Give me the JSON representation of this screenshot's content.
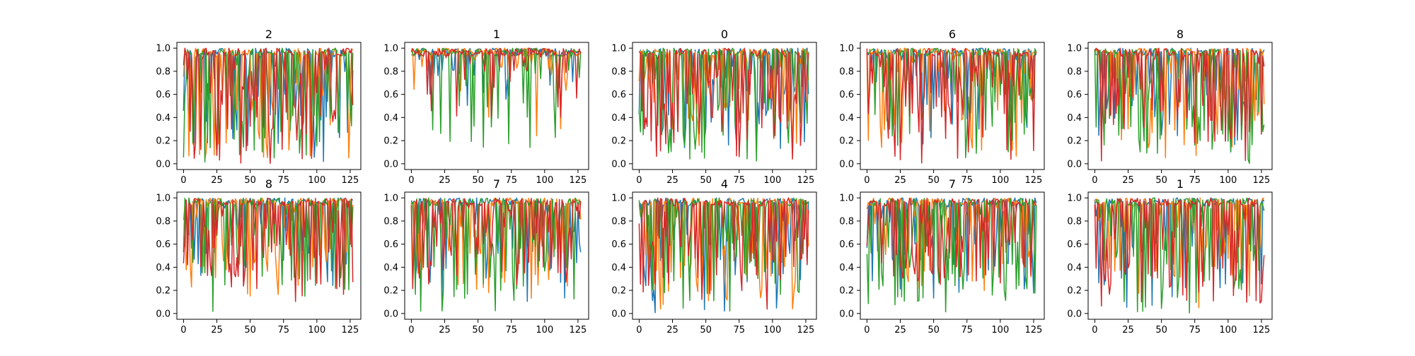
{
  "chart_data": {
    "type": "line",
    "layout": {
      "rows": 2,
      "cols": 5
    },
    "legend": "none",
    "grid": false,
    "xlim": [
      -5,
      133
    ],
    "ylim": [
      -0.05,
      1.05
    ],
    "x_ticks": [
      0,
      25,
      50,
      75,
      100,
      125
    ],
    "y_ticks": [
      0.0,
      0.2,
      0.4,
      0.6,
      0.8,
      1.0
    ],
    "x_tick_labels": [
      "0",
      "25",
      "50",
      "75",
      "100",
      "125"
    ],
    "y_tick_labels": [
      "0.0",
      "0.2",
      "0.4",
      "0.6",
      "0.8",
      "1.0"
    ],
    "series_colors": [
      "#1f77b4",
      "#ff7f0e",
      "#2ca02c",
      "#d62728"
    ],
    "n_points": 128,
    "panels": [
      {
        "title": "2",
        "series": [
          {
            "dip_prob": 0.45,
            "min": 0.0,
            "floor": 0.15
          },
          {
            "dip_prob": 0.5,
            "min": 0.0,
            "floor": 0.05
          },
          {
            "dip_prob": 0.45,
            "min": 0.0,
            "floor": 0.05
          },
          {
            "dip_prob": 0.6,
            "min": 0.0,
            "floor": 0.02
          }
        ]
      },
      {
        "title": "1",
        "series": [
          {
            "dip_prob": 0.25,
            "min": 0.5,
            "floor": 0.7
          },
          {
            "dip_prob": 0.25,
            "min": 0.15,
            "floor": 0.7
          },
          {
            "dip_prob": 0.2,
            "min": 0.0,
            "floor": 0.4
          },
          {
            "dip_prob": 0.25,
            "min": 0.35,
            "floor": 0.65
          }
        ]
      },
      {
        "title": "0",
        "series": [
          {
            "dip_prob": 0.45,
            "min": 0.1,
            "floor": 0.3
          },
          {
            "dip_prob": 0.45,
            "min": 0.15,
            "floor": 0.3
          },
          {
            "dip_prob": 0.5,
            "min": 0.0,
            "floor": 0.15
          },
          {
            "dip_prob": 0.55,
            "min": 0.0,
            "floor": 0.4
          }
        ]
      },
      {
        "title": "6",
        "series": [
          {
            "dip_prob": 0.35,
            "min": 0.1,
            "floor": 0.4
          },
          {
            "dip_prob": 0.4,
            "min": 0.05,
            "floor": 0.2
          },
          {
            "dip_prob": 0.45,
            "min": 0.0,
            "floor": 0.2
          },
          {
            "dip_prob": 0.5,
            "min": 0.0,
            "floor": 0.4
          }
        ]
      },
      {
        "title": "8",
        "series": [
          {
            "dip_prob": 0.4,
            "min": 0.1,
            "floor": 0.3
          },
          {
            "dip_prob": 0.45,
            "min": 0.0,
            "floor": 0.2
          },
          {
            "dip_prob": 0.5,
            "min": 0.0,
            "floor": 0.1
          },
          {
            "dip_prob": 0.5,
            "min": 0.0,
            "floor": 0.05
          }
        ]
      },
      {
        "title": "8",
        "series": [
          {
            "dip_prob": 0.4,
            "min": 0.1,
            "floor": 0.4
          },
          {
            "dip_prob": 0.45,
            "min": 0.15,
            "floor": 0.35
          },
          {
            "dip_prob": 0.45,
            "min": 0.0,
            "floor": 0.2
          },
          {
            "dip_prob": 0.5,
            "min": 0.1,
            "floor": 0.2
          }
        ]
      },
      {
        "title": "7",
        "series": [
          {
            "dip_prob": 0.4,
            "min": 0.1,
            "floor": 0.3
          },
          {
            "dip_prob": 0.45,
            "min": 0.1,
            "floor": 0.2
          },
          {
            "dip_prob": 0.5,
            "min": 0.0,
            "floor": 0.1
          },
          {
            "dip_prob": 0.55,
            "min": 0.2,
            "floor": 0.3
          }
        ]
      },
      {
        "title": "4",
        "series": [
          {
            "dip_prob": 0.45,
            "min": 0.0,
            "floor": 0.2
          },
          {
            "dip_prob": 0.45,
            "min": 0.0,
            "floor": 0.1
          },
          {
            "dip_prob": 0.5,
            "min": 0.0,
            "floor": 0.1
          },
          {
            "dip_prob": 0.5,
            "min": 0.0,
            "floor": 0.2
          }
        ]
      },
      {
        "title": "7",
        "series": [
          {
            "dip_prob": 0.4,
            "min": 0.1,
            "floor": 0.4
          },
          {
            "dip_prob": 0.45,
            "min": 0.15,
            "floor": 0.3
          },
          {
            "dip_prob": 0.5,
            "min": 0.0,
            "floor": 0.1
          },
          {
            "dip_prob": 0.5,
            "min": 0.2,
            "floor": 0.3
          }
        ]
      },
      {
        "title": "1",
        "series": [
          {
            "dip_prob": 0.4,
            "min": 0.05,
            "floor": 0.4
          },
          {
            "dip_prob": 0.45,
            "min": 0.05,
            "floor": 0.25
          },
          {
            "dip_prob": 0.45,
            "min": 0.0,
            "floor": 0.15
          },
          {
            "dip_prob": 0.55,
            "min": 0.0,
            "floor": 0.1
          }
        ]
      }
    ]
  }
}
